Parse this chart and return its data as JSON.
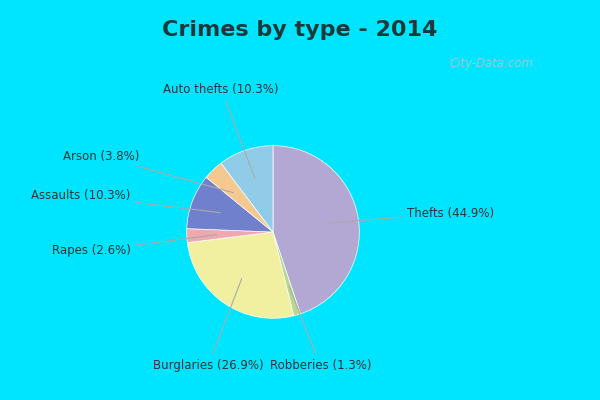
{
  "title": "Crimes by type - 2014",
  "title_fontsize": 16,
  "title_fontweight": "bold",
  "labels": [
    "Thefts",
    "Robberies",
    "Burglaries",
    "Rapes",
    "Assaults",
    "Arson",
    "Auto thefts"
  ],
  "values": [
    44.9,
    1.3,
    26.9,
    2.6,
    10.3,
    3.8,
    10.3
  ],
  "colors": [
    "#b3a8d4",
    "#b8d98b",
    "#f0f0a0",
    "#f0a8b0",
    "#7080cc",
    "#f5c890",
    "#90cce8"
  ],
  "bg_cyan": "#00e5ff",
  "bg_main": "#d4ecd4",
  "label_display": [
    "Thefts (44.9%)",
    "Robberies (1.3%)",
    "Burglaries (26.9%)",
    "Rapes (2.6%)",
    "Assaults (10.3%)",
    "Arson (3.8%)",
    "Auto thefts (10.3%)"
  ],
  "label_text_color": "#333333",
  "label_fontsize": 8.5,
  "watermark": "City-Data.com",
  "figsize": [
    6.0,
    4.0
  ],
  "dpi": 100,
  "border_size": 12
}
